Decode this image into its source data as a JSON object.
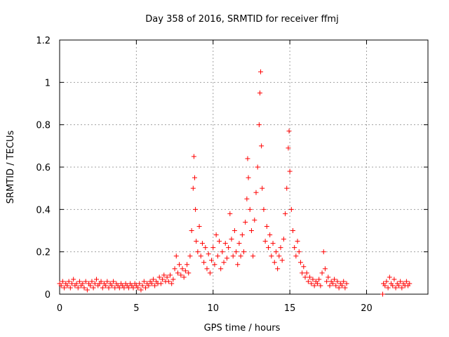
{
  "chart_data": {
    "type": "scatter",
    "title": "Day 358 of 2016, SRMTID for receiver ffmj",
    "xlabel": "GPS time / hours",
    "ylabel": "SRMTID / TECUs",
    "xlim": [
      0,
      24
    ],
    "ylim": [
      0,
      1.2
    ],
    "xticks": [
      0,
      5,
      10,
      15,
      20
    ],
    "xtick_labels": [
      "0",
      "5",
      "10",
      "15",
      "20"
    ],
    "yticks": [
      0,
      0.2,
      0.4,
      0.6,
      0.8,
      1.0,
      1.2
    ],
    "ytick_labels": [
      "0",
      "0.2",
      "0.4",
      "0.6",
      "0.8",
      "1",
      "1.2"
    ],
    "grid": true,
    "marker": "+",
    "marker_color": "#ff0000",
    "series": [
      {
        "name": "SRMTID",
        "points": [
          [
            0.0,
            0.05
          ],
          [
            0.1,
            0.04
          ],
          [
            0.2,
            0.06
          ],
          [
            0.3,
            0.03
          ],
          [
            0.4,
            0.05
          ],
          [
            0.5,
            0.04
          ],
          [
            0.6,
            0.06
          ],
          [
            0.7,
            0.03
          ],
          [
            0.8,
            0.05
          ],
          [
            0.9,
            0.07
          ],
          [
            1.0,
            0.04
          ],
          [
            1.1,
            0.05
          ],
          [
            1.2,
            0.03
          ],
          [
            1.3,
            0.06
          ],
          [
            1.4,
            0.04
          ],
          [
            1.5,
            0.05
          ],
          [
            1.6,
            0.03
          ],
          [
            1.7,
            0.06
          ],
          [
            1.8,
            0.02
          ],
          [
            1.9,
            0.05
          ],
          [
            2.0,
            0.04
          ],
          [
            2.1,
            0.06
          ],
          [
            2.2,
            0.03
          ],
          [
            2.3,
            0.05
          ],
          [
            2.4,
            0.07
          ],
          [
            2.5,
            0.04
          ],
          [
            2.6,
            0.05
          ],
          [
            2.7,
            0.06
          ],
          [
            2.8,
            0.03
          ],
          [
            2.9,
            0.05
          ],
          [
            3.0,
            0.04
          ],
          [
            3.1,
            0.06
          ],
          [
            3.2,
            0.03
          ],
          [
            3.3,
            0.05
          ],
          [
            3.4,
            0.04
          ],
          [
            3.5,
            0.06
          ],
          [
            3.6,
            0.03
          ],
          [
            3.7,
            0.05
          ],
          [
            3.8,
            0.04
          ],
          [
            3.9,
            0.03
          ],
          [
            4.0,
            0.05
          ],
          [
            4.1,
            0.04
          ],
          [
            4.2,
            0.03
          ],
          [
            4.3,
            0.05
          ],
          [
            4.4,
            0.04
          ],
          [
            4.5,
            0.03
          ],
          [
            4.6,
            0.05
          ],
          [
            4.7,
            0.04
          ],
          [
            4.8,
            0.03
          ],
          [
            4.9,
            0.05
          ],
          [
            5.0,
            0.04
          ],
          [
            5.1,
            0.03
          ],
          [
            5.2,
            0.05
          ],
          [
            5.3,
            0.02
          ],
          [
            5.4,
            0.04
          ],
          [
            5.5,
            0.06
          ],
          [
            5.6,
            0.03
          ],
          [
            5.7,
            0.05
          ],
          [
            5.8,
            0.04
          ],
          [
            5.9,
            0.06
          ],
          [
            6.0,
            0.05
          ],
          [
            6.1,
            0.07
          ],
          [
            6.2,
            0.04
          ],
          [
            6.3,
            0.06
          ],
          [
            6.4,
            0.05
          ],
          [
            6.5,
            0.08
          ],
          [
            6.6,
            0.05
          ],
          [
            6.7,
            0.07
          ],
          [
            6.8,
            0.09
          ],
          [
            6.9,
            0.06
          ],
          [
            7.0,
            0.08
          ],
          [
            7.1,
            0.06
          ],
          [
            7.2,
            0.09
          ],
          [
            7.3,
            0.05
          ],
          [
            7.4,
            0.07
          ],
          [
            7.5,
            0.12
          ],
          [
            7.6,
            0.18
          ],
          [
            7.7,
            0.1
          ],
          [
            7.8,
            0.14
          ],
          [
            7.9,
            0.09
          ],
          [
            8.0,
            0.12
          ],
          [
            8.1,
            0.08
          ],
          [
            8.2,
            0.11
          ],
          [
            8.3,
            0.14
          ],
          [
            8.4,
            0.1
          ],
          [
            8.5,
            0.18
          ],
          [
            8.6,
            0.3
          ],
          [
            8.7,
            0.5
          ],
          [
            8.75,
            0.65
          ],
          [
            8.8,
            0.55
          ],
          [
            8.85,
            0.4
          ],
          [
            8.9,
            0.25
          ],
          [
            9.0,
            0.2
          ],
          [
            9.1,
            0.32
          ],
          [
            9.2,
            0.18
          ],
          [
            9.3,
            0.24
          ],
          [
            9.4,
            0.15
          ],
          [
            9.5,
            0.22
          ],
          [
            9.6,
            0.12
          ],
          [
            9.7,
            0.19
          ],
          [
            9.8,
            0.1
          ],
          [
            9.9,
            0.16
          ],
          [
            10.0,
            0.22
          ],
          [
            10.1,
            0.14
          ],
          [
            10.2,
            0.28
          ],
          [
            10.3,
            0.18
          ],
          [
            10.4,
            0.25
          ],
          [
            10.5,
            0.12
          ],
          [
            10.6,
            0.2
          ],
          [
            10.7,
            0.15
          ],
          [
            10.8,
            0.24
          ],
          [
            10.9,
            0.17
          ],
          [
            11.0,
            0.22
          ],
          [
            11.1,
            0.38
          ],
          [
            11.2,
            0.26
          ],
          [
            11.3,
            0.18
          ],
          [
            11.4,
            0.3
          ],
          [
            11.5,
            0.2
          ],
          [
            11.6,
            0.14
          ],
          [
            11.7,
            0.24
          ],
          [
            11.8,
            0.18
          ],
          [
            11.9,
            0.28
          ],
          [
            12.0,
            0.2
          ],
          [
            12.1,
            0.34
          ],
          [
            12.2,
            0.45
          ],
          [
            12.25,
            0.64
          ],
          [
            12.3,
            0.55
          ],
          [
            12.4,
            0.4
          ],
          [
            12.5,
            0.3
          ],
          [
            12.6,
            0.18
          ],
          [
            12.7,
            0.35
          ],
          [
            12.8,
            0.48
          ],
          [
            12.9,
            0.6
          ],
          [
            13.0,
            0.8
          ],
          [
            13.05,
            0.95
          ],
          [
            13.1,
            1.05
          ],
          [
            13.15,
            0.7
          ],
          [
            13.2,
            0.5
          ],
          [
            13.3,
            0.4
          ],
          [
            13.4,
            0.25
          ],
          [
            13.5,
            0.32
          ],
          [
            13.6,
            0.22
          ],
          [
            13.7,
            0.28
          ],
          [
            13.8,
            0.18
          ],
          [
            13.9,
            0.24
          ],
          [
            14.0,
            0.15
          ],
          [
            14.1,
            0.2
          ],
          [
            14.2,
            0.12
          ],
          [
            14.3,
            0.18
          ],
          [
            14.4,
            0.22
          ],
          [
            14.5,
            0.16
          ],
          [
            14.6,
            0.26
          ],
          [
            14.7,
            0.38
          ],
          [
            14.8,
            0.5
          ],
          [
            14.9,
            0.69
          ],
          [
            14.95,
            0.77
          ],
          [
            15.0,
            0.58
          ],
          [
            15.1,
            0.4
          ],
          [
            15.2,
            0.3
          ],
          [
            15.3,
            0.22
          ],
          [
            15.4,
            0.18
          ],
          [
            15.5,
            0.25
          ],
          [
            15.6,
            0.2
          ],
          [
            15.7,
            0.15
          ],
          [
            15.8,
            0.1
          ],
          [
            15.9,
            0.13
          ],
          [
            16.0,
            0.08
          ],
          [
            16.1,
            0.1
          ],
          [
            16.2,
            0.06
          ],
          [
            16.3,
            0.08
          ],
          [
            16.4,
            0.05
          ],
          [
            16.5,
            0.07
          ],
          [
            16.6,
            0.04
          ],
          [
            16.7,
            0.06
          ],
          [
            16.8,
            0.05
          ],
          [
            16.9,
            0.07
          ],
          [
            17.0,
            0.04
          ],
          [
            17.1,
            0.1
          ],
          [
            17.2,
            0.2
          ],
          [
            17.3,
            0.12
          ],
          [
            17.4,
            0.06
          ],
          [
            17.5,
            0.08
          ],
          [
            17.6,
            0.04
          ],
          [
            17.7,
            0.06
          ],
          [
            17.8,
            0.05
          ],
          [
            17.9,
            0.07
          ],
          [
            18.0,
            0.04
          ],
          [
            18.1,
            0.06
          ],
          [
            18.2,
            0.03
          ],
          [
            18.3,
            0.05
          ],
          [
            18.4,
            0.04
          ],
          [
            18.5,
            0.06
          ],
          [
            18.6,
            0.03
          ],
          [
            18.7,
            0.05
          ],
          [
            21.05,
            0.0
          ],
          [
            21.1,
            0.05
          ],
          [
            21.2,
            0.04
          ],
          [
            21.3,
            0.06
          ],
          [
            21.4,
            0.03
          ],
          [
            21.5,
            0.08
          ],
          [
            21.6,
            0.05
          ],
          [
            21.7,
            0.04
          ],
          [
            21.8,
            0.07
          ],
          [
            21.9,
            0.03
          ],
          [
            22.0,
            0.05
          ],
          [
            22.1,
            0.04
          ],
          [
            22.2,
            0.06
          ],
          [
            22.3,
            0.03
          ],
          [
            22.4,
            0.05
          ],
          [
            22.5,
            0.04
          ],
          [
            22.6,
            0.06
          ],
          [
            22.7,
            0.04
          ],
          [
            22.8,
            0.05
          ]
        ]
      }
    ]
  }
}
